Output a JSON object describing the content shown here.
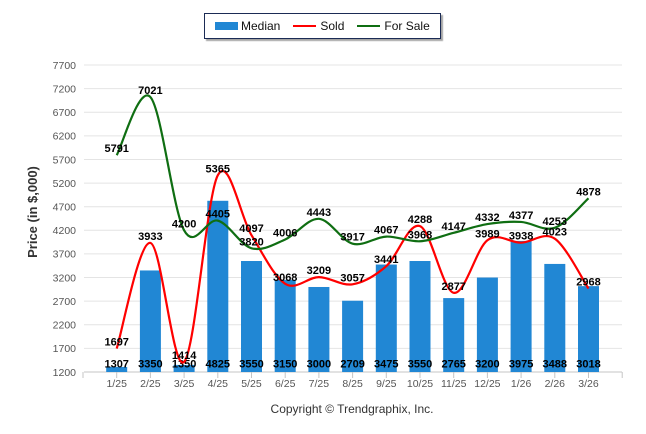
{
  "chart_data": {
    "type": "bar",
    "title": "",
    "xlabel": "",
    "ylabel": "Price (in $,000)",
    "ylim": [
      1200,
      7700
    ],
    "yticks": [
      1200,
      1700,
      2200,
      2700,
      3200,
      3700,
      4200,
      4700,
      5200,
      5700,
      6200,
      6700,
      7200,
      7700
    ],
    "grid": true,
    "legend_position": "top-center",
    "categories": [
      "1/25",
      "2/25",
      "3/25",
      "4/25",
      "5/25",
      "6/25",
      "7/25",
      "8/25",
      "9/25",
      "10/25",
      "11/25",
      "12/25",
      "1/26",
      "2/26",
      "3/26"
    ],
    "series": [
      {
        "name": "Median",
        "type": "bar",
        "color": "#2187d4",
        "values": [
          1307,
          3350,
          1350,
          4825,
          3550,
          3150,
          3000,
          2709,
          3475,
          3550,
          2765,
          3200,
          3975,
          3488,
          3018
        ]
      },
      {
        "name": "Sold",
        "type": "line",
        "color": "#ff0000",
        "values": [
          1697,
          3933,
          1414,
          5365,
          4097,
          3068,
          3209,
          3057,
          3441,
          4288,
          2877,
          3989,
          3938,
          4023,
          2968
        ]
      },
      {
        "name": "For Sale",
        "type": "line",
        "color": "#0f6e12",
        "values": [
          5791,
          7021,
          4200,
          4405,
          3820,
          4006,
          4443,
          3917,
          4067,
          3968,
          4147,
          4332,
          4377,
          4253,
          4878
        ]
      }
    ],
    "colors": {
      "grid": "#e4e4e4",
      "axis": "#c4c4c4"
    }
  },
  "footer": {
    "copyright": "Copyright © Trendgraphix, Inc."
  }
}
